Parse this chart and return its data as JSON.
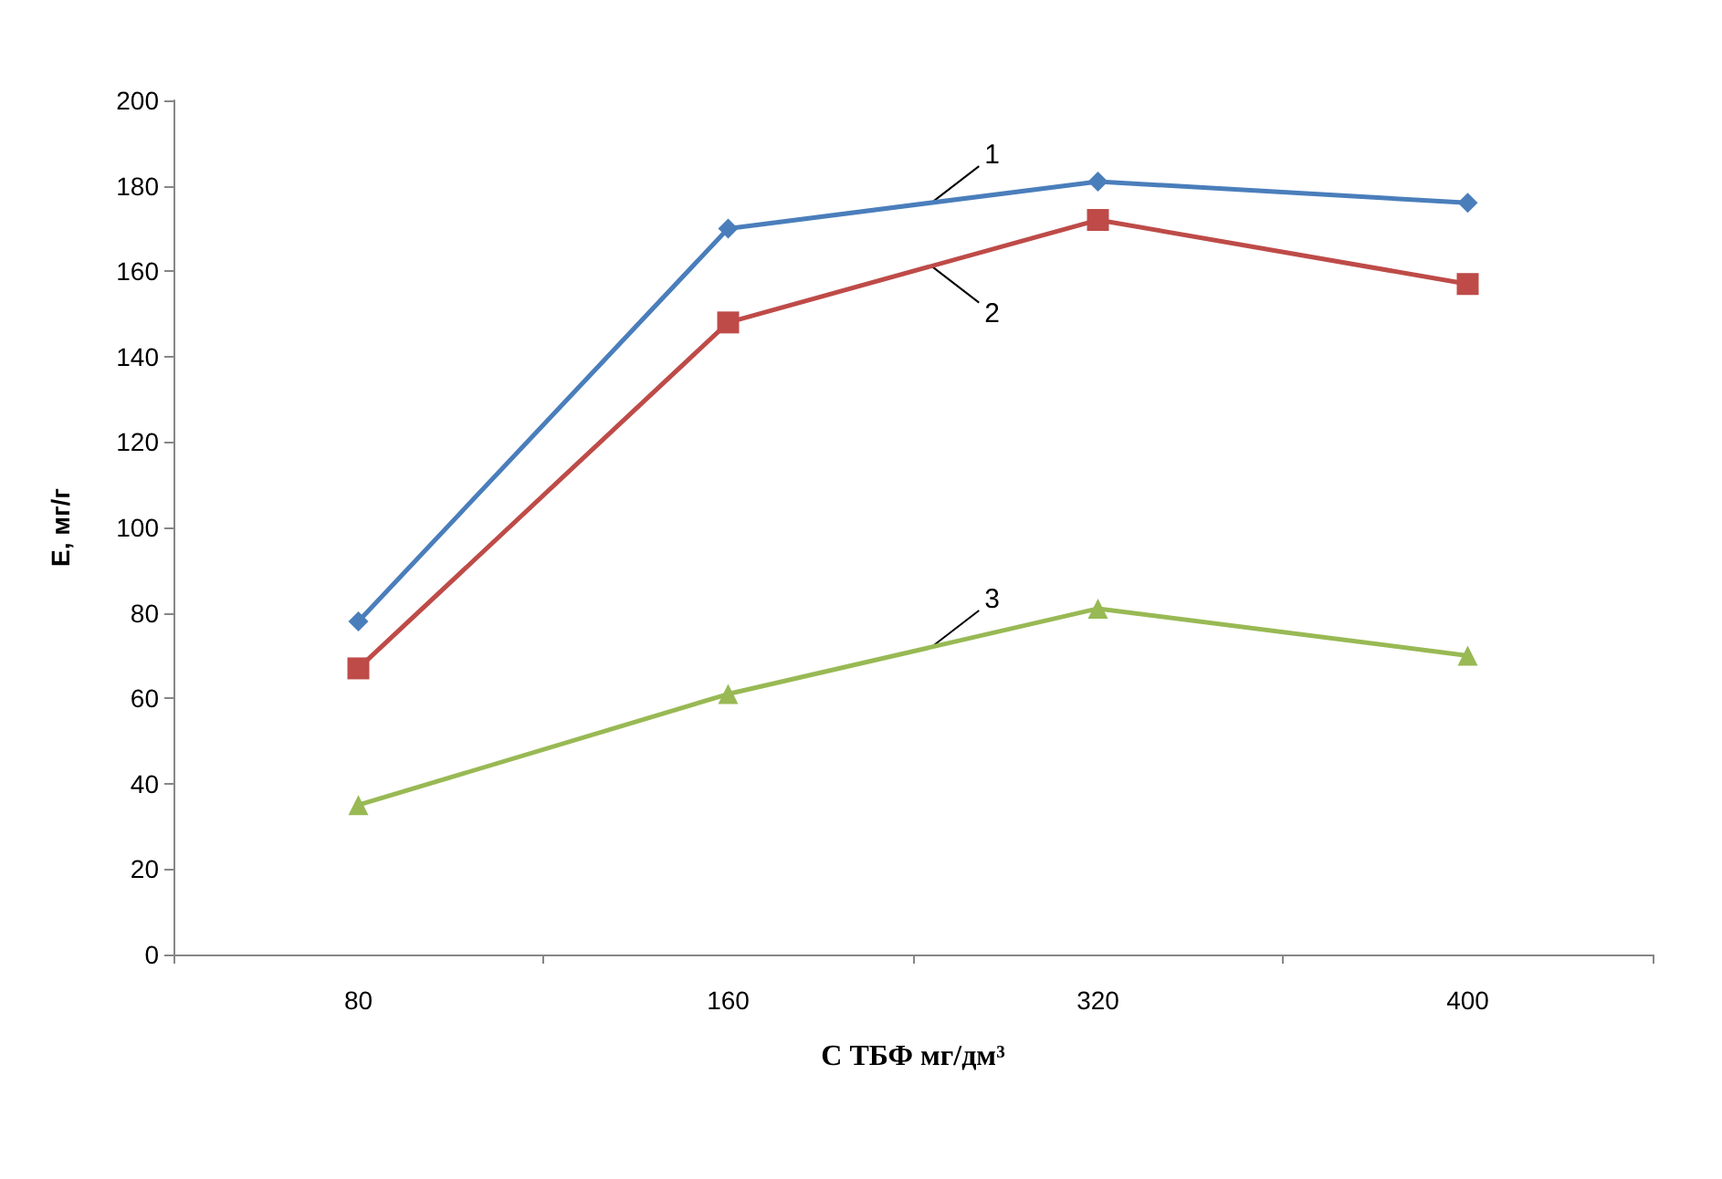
{
  "chart_data": {
    "type": "line",
    "xlabel": "С ТБФ мг/дм³",
    "ylabel": "Е, мг/г",
    "categories": [
      "80",
      "160",
      "320",
      "400"
    ],
    "series": [
      {
        "name": "1",
        "color": "#4a7ebb",
        "marker": "diamond",
        "values": [
          78,
          170,
          181,
          176
        ]
      },
      {
        "name": "2",
        "color": "#be4b48",
        "marker": "square",
        "values": [
          67,
          148,
          172,
          157
        ]
      },
      {
        "name": "3",
        "color": "#98b954",
        "marker": "triangle",
        "values": [
          35,
          61,
          81,
          70
        ]
      }
    ],
    "ylim": [
      0,
      200
    ],
    "yticks": [
      0,
      20,
      40,
      60,
      80,
      100,
      120,
      140,
      160,
      180,
      200
    ],
    "grid": false,
    "legend": false
  }
}
